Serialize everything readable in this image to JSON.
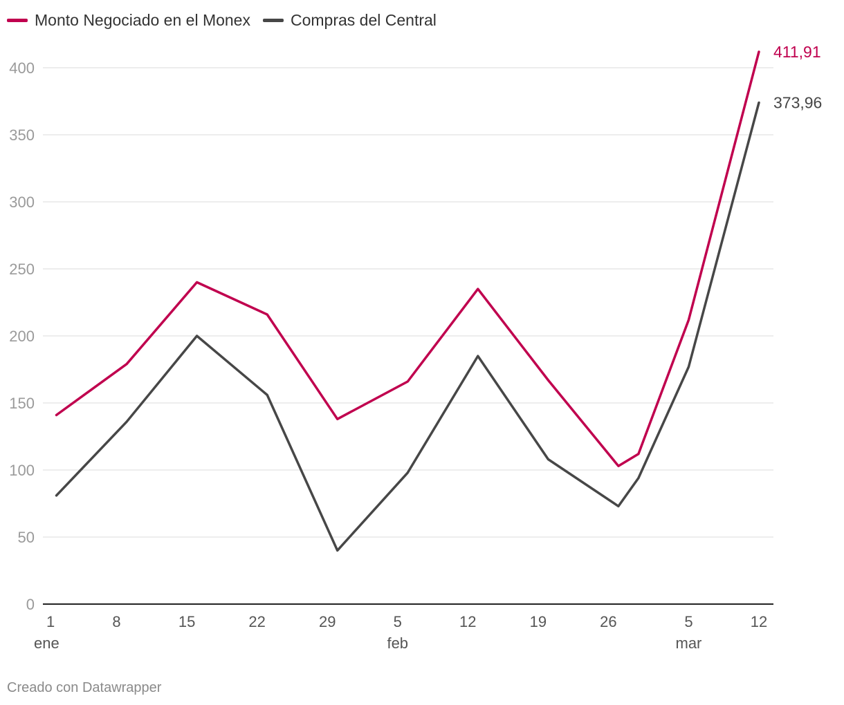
{
  "legend": {
    "items": [
      {
        "label": "Monto Negociado en el Monex",
        "color": "#c0004e"
      },
      {
        "label": "Compras del Central",
        "color": "#474747"
      }
    ]
  },
  "credit": "Creado con Datawrapper",
  "chart_data": {
    "type": "line",
    "title": "",
    "xlabel": "",
    "ylabel": "",
    "x_ticks": [
      {
        "day": 1,
        "label": "1",
        "month_label": "ene"
      },
      {
        "day": 8,
        "label": "8",
        "month_label": ""
      },
      {
        "day": 15,
        "label": "15",
        "month_label": ""
      },
      {
        "day": 22,
        "label": "22",
        "month_label": ""
      },
      {
        "day": 29,
        "label": "29",
        "month_label": ""
      },
      {
        "day": 36,
        "label": "5",
        "month_label": "feb"
      },
      {
        "day": 43,
        "label": "12",
        "month_label": ""
      },
      {
        "day": 50,
        "label": "19",
        "month_label": ""
      },
      {
        "day": 57,
        "label": "26",
        "month_label": ""
      },
      {
        "day": 65,
        "label": "5",
        "month_label": "mar"
      },
      {
        "day": 72,
        "label": "12",
        "month_label": ""
      }
    ],
    "y_ticks": [
      0,
      50,
      100,
      150,
      200,
      250,
      300,
      350,
      400
    ],
    "ylim": [
      0,
      420
    ],
    "xlim": [
      1,
      72
    ],
    "grid": true,
    "legend_position": "top-left",
    "series": [
      {
        "name": "Monto Negociado en el Monex",
        "color": "#c0004e",
        "end_label": "411,91",
        "points": [
          {
            "day": 2,
            "value": 141
          },
          {
            "day": 9,
            "value": 179
          },
          {
            "day": 16,
            "value": 240
          },
          {
            "day": 23,
            "value": 216
          },
          {
            "day": 30,
            "value": 138
          },
          {
            "day": 37,
            "value": 166
          },
          {
            "day": 44,
            "value": 235
          },
          {
            "day": 51,
            "value": 167
          },
          {
            "day": 58,
            "value": 103
          },
          {
            "day": 60,
            "value": 112
          },
          {
            "day": 65,
            "value": 212
          },
          {
            "day": 72,
            "value": 411.91
          }
        ]
      },
      {
        "name": "Compras del Central",
        "color": "#474747",
        "end_label": "373,96",
        "points": [
          {
            "day": 2,
            "value": 81
          },
          {
            "day": 9,
            "value": 136
          },
          {
            "day": 16,
            "value": 200
          },
          {
            "day": 23,
            "value": 156
          },
          {
            "day": 30,
            "value": 40
          },
          {
            "day": 37,
            "value": 98
          },
          {
            "day": 44,
            "value": 185
          },
          {
            "day": 51,
            "value": 108
          },
          {
            "day": 58,
            "value": 73
          },
          {
            "day": 60,
            "value": 94
          },
          {
            "day": 65,
            "value": 177
          },
          {
            "day": 72,
            "value": 373.96
          }
        ]
      }
    ]
  }
}
